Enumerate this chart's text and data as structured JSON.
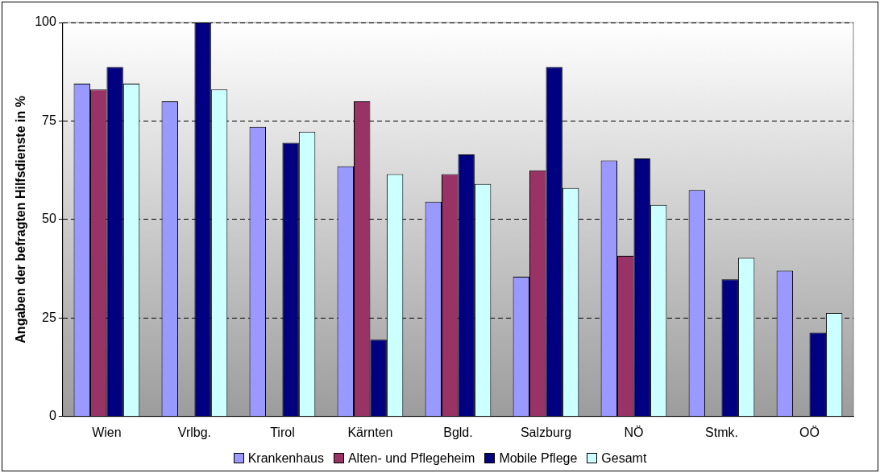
{
  "chart_data": {
    "type": "bar",
    "ylabel": "Angaben der befragten Hilfsdienste in %",
    "categories": [
      "Wien",
      "Vrlbg.",
      "Tirol",
      "Kärnten",
      "Bgld.",
      "Salzburg",
      "NÖ",
      "Stmk.",
      "OÖ"
    ],
    "series": [
      {
        "name": "Krankenhaus",
        "color": "#9999ff",
        "values": [
          84.5,
          80,
          73.5,
          63.5,
          54.5,
          35.5,
          65,
          57.5,
          37
        ]
      },
      {
        "name": "Alten- und Pflegeheim",
        "color": "#993366",
        "values": [
          83,
          null,
          null,
          80,
          61.5,
          62.5,
          40.8,
          null,
          null
        ]
      },
      {
        "name": "Mobile Pflege",
        "color": "#000080",
        "values": [
          88.7,
          100,
          69.5,
          19.5,
          66.5,
          88.7,
          65.5,
          34.8,
          21.3
        ]
      },
      {
        "name": "Gesamt",
        "color": "#ccffff",
        "values": [
          84.5,
          83,
          72.3,
          61.5,
          59,
          58,
          53.7,
          40.3,
          26.3
        ]
      }
    ],
    "ylim": [
      0,
      100
    ],
    "yticks": [
      0,
      25,
      50,
      75,
      100
    ],
    "grid": "y",
    "legend": "bottom"
  }
}
